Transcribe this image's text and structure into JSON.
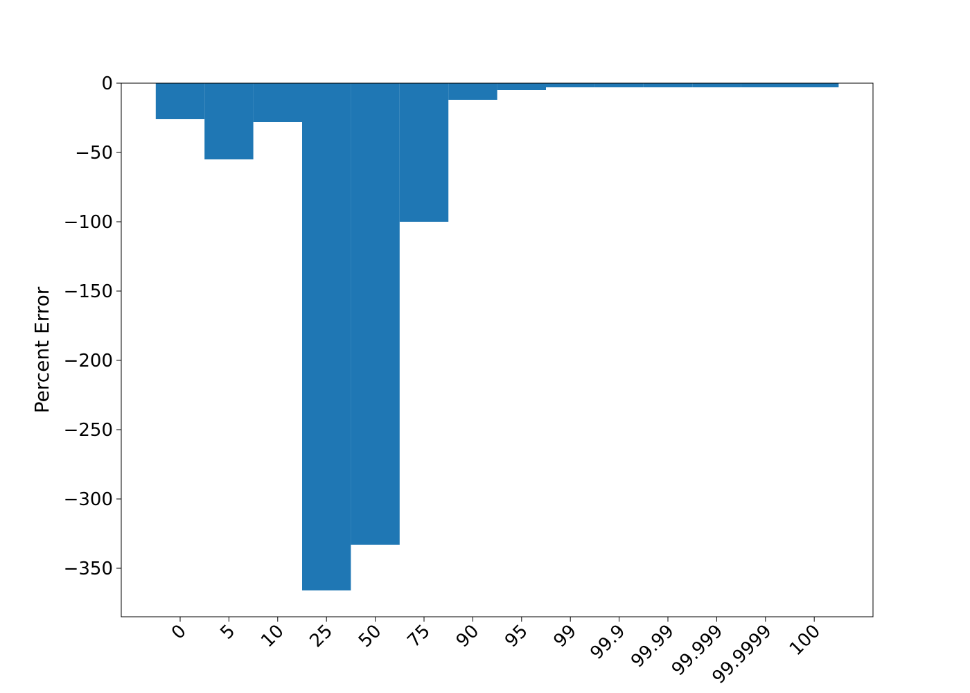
{
  "chart_data": {
    "type": "bar",
    "title": "",
    "xlabel": "",
    "ylabel": "Percent Error",
    "categories": [
      "0",
      "5",
      "10",
      "25",
      "50",
      "75",
      "90",
      "95",
      "99",
      "99.9",
      "99.99",
      "99.999",
      "99.9999",
      "100"
    ],
    "values": [
      -26,
      -55,
      -28,
      -366,
      -333,
      -100,
      -12,
      -5,
      -3,
      -3,
      -3,
      -3,
      -3,
      -3
    ],
    "ylim": [
      -385,
      0
    ],
    "yticks": [
      0,
      -50,
      -100,
      -150,
      -200,
      -250,
      -300,
      -350
    ],
    "ytick_labels": [
      "0",
      "−50",
      "−100",
      "−150",
      "−200",
      "−250",
      "−300",
      "−350"
    ],
    "bar_color": "#1f77b4",
    "grid": false,
    "legend": "none"
  }
}
